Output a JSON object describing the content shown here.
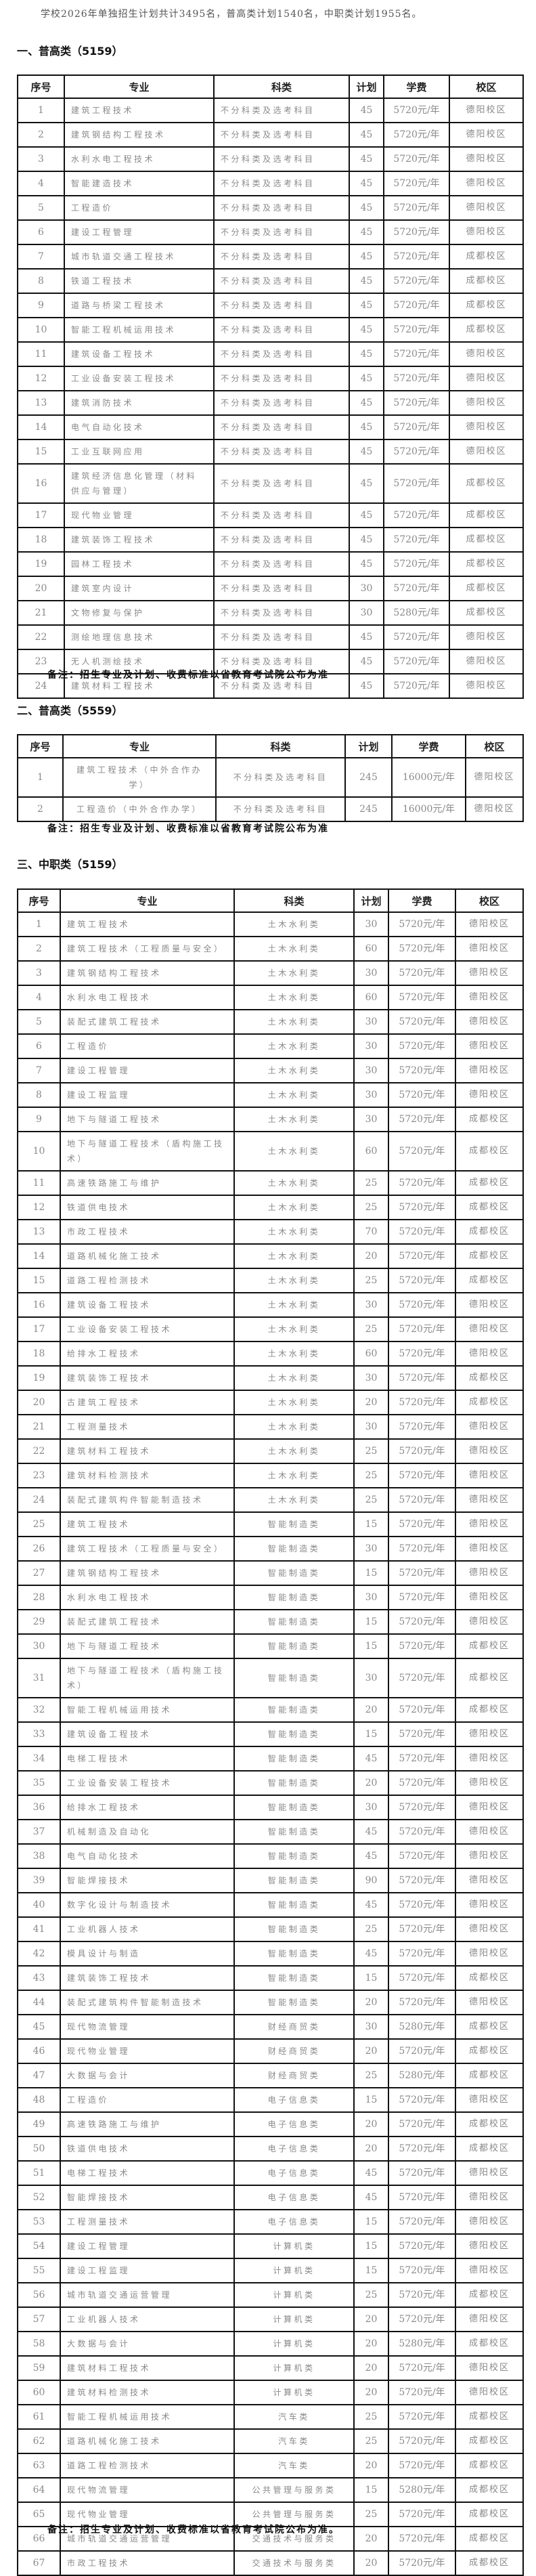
{
  "intro": "学校2026年单独招生计划共计3495名，普高类计划1540名，中职类计划1955名。",
  "columns": [
    "序号",
    "专业",
    "科类",
    "计划",
    "学费",
    "校区"
  ],
  "sections": [
    {
      "heading": "一、普高类（5159）",
      "note": "备注：招生专业及计划、收费标准以省教育考试院公布为准",
      "rows": [
        [
          "1",
          "建筑工程技术",
          "不分科类及选考科目",
          "45",
          "5720元/年",
          "德阳校区"
        ],
        [
          "2",
          "建筑钢结构工程技术",
          "不分科类及选考科目",
          "45",
          "5720元/年",
          "德阳校区"
        ],
        [
          "3",
          "水利水电工程技术",
          "不分科类及选考科目",
          "45",
          "5720元/年",
          "德阳校区"
        ],
        [
          "4",
          "智能建造技术",
          "不分科类及选考科目",
          "45",
          "5720元/年",
          "德阳校区"
        ],
        [
          "5",
          "工程造价",
          "不分科类及选考科目",
          "45",
          "5720元/年",
          "德阳校区"
        ],
        [
          "6",
          "建设工程管理",
          "不分科类及选考科目",
          "45",
          "5720元/年",
          "德阳校区"
        ],
        [
          "7",
          "城市轨道交通工程技术",
          "不分科类及选考科目",
          "45",
          "5720元/年",
          "成都校区"
        ],
        [
          "8",
          "铁道工程技术",
          "不分科类及选考科目",
          "45",
          "5720元/年",
          "成都校区"
        ],
        [
          "9",
          "道路与桥梁工程技术",
          "不分科类及选考科目",
          "45",
          "5720元/年",
          "成都校区"
        ],
        [
          "10",
          "智能工程机械运用技术",
          "不分科类及选考科目",
          "45",
          "5720元/年",
          "成都校区"
        ],
        [
          "11",
          "建筑设备工程技术",
          "不分科类及选考科目",
          "45",
          "5720元/年",
          "德阳校区"
        ],
        [
          "12",
          "工业设备安装工程技术",
          "不分科类及选考科目",
          "45",
          "5720元/年",
          "德阳校区"
        ],
        [
          "13",
          "建筑消防技术",
          "不分科类及选考科目",
          "45",
          "5720元/年",
          "德阳校区"
        ],
        [
          "14",
          "电气自动化技术",
          "不分科类及选考科目",
          "45",
          "5720元/年",
          "德阳校区"
        ],
        [
          "15",
          "工业互联网应用",
          "不分科类及选考科目",
          "45",
          "5720元/年",
          "德阳校区"
        ],
        [
          "16",
          "建筑经济信息化管理（材料供应与管理）",
          "不分科类及选考科目",
          "45",
          "5720元/年",
          "成都校区"
        ],
        [
          "17",
          "现代物业管理",
          "不分科类及选考科目",
          "45",
          "5720元/年",
          "成都校区"
        ],
        [
          "18",
          "建筑装饰工程技术",
          "不分科类及选考科目",
          "45",
          "5720元/年",
          "成都校区"
        ],
        [
          "19",
          "园林工程技术",
          "不分科类及选考科目",
          "45",
          "5720元/年",
          "成都校区"
        ],
        [
          "20",
          "建筑室内设计",
          "不分科类及选考科目",
          "30",
          "5720元/年",
          "成都校区"
        ],
        [
          "21",
          "文物修复与保护",
          "不分科类及选考科目",
          "30",
          "5280元/年",
          "成都校区"
        ],
        [
          "22",
          "测绘地理信息技术",
          "不分科类及选考科目",
          "45",
          "5720元/年",
          "德阳校区"
        ],
        [
          "23",
          "无人机测绘技术",
          "不分科类及选考科目",
          "45",
          "5720元/年",
          "德阳校区"
        ],
        [
          "24",
          "建筑材料工程技术",
          "不分科类及选考科目",
          "45",
          "5720元/年",
          "德阳校区"
        ]
      ]
    },
    {
      "heading": "二、普高类（5559）",
      "note": "备注：招生专业及计划、收费标准以省教育考试院公布为准",
      "rows": [
        [
          "1",
          "建筑工程技术（中外合作办学）",
          "不分科类及选考科目",
          "245",
          "16000元/年",
          "德阳校区"
        ],
        [
          "2",
          "工程造价（中外合作办学）",
          "不分科类及选考科目",
          "245",
          "16000元/年",
          "德阳校区"
        ]
      ]
    },
    {
      "heading": "三、中职类（5159）",
      "note": "备注：招生专业及计划、收费标准以省教育考试院公布为准。",
      "rows": [
        [
          "1",
          "建筑工程技术",
          "土木水利类",
          "30",
          "5720元/年",
          "德阳校区"
        ],
        [
          "2",
          "建筑工程技术（工程质量与安全）",
          "土木水利类",
          "60",
          "5720元/年",
          "德阳校区"
        ],
        [
          "3",
          "建筑钢结构工程技术",
          "土木水利类",
          "30",
          "5720元/年",
          "德阳校区"
        ],
        [
          "4",
          "水利水电工程技术",
          "土木水利类",
          "60",
          "5720元/年",
          "德阳校区"
        ],
        [
          "5",
          "装配式建筑工程技术",
          "土木水利类",
          "30",
          "5720元/年",
          "德阳校区"
        ],
        [
          "6",
          "工程造价",
          "土木水利类",
          "30",
          "5720元/年",
          "德阳校区"
        ],
        [
          "7",
          "建设工程管理",
          "土木水利类",
          "30",
          "5720元/年",
          "德阳校区"
        ],
        [
          "8",
          "建设工程监理",
          "土木水利类",
          "30",
          "5720元/年",
          "德阳校区"
        ],
        [
          "9",
          "地下与隧道工程技术",
          "土木水利类",
          "30",
          "5720元/年",
          "成都校区"
        ],
        [
          "10",
          "地下与隧道工程技术（盾构施工技术）",
          "土木水利类",
          "60",
          "5720元/年",
          "成都校区"
        ],
        [
          "11",
          "高速铁路施工与维护",
          "土木水利类",
          "25",
          "5720元/年",
          "成都校区"
        ],
        [
          "12",
          "铁道供电技术",
          "土木水利类",
          "25",
          "5720元/年",
          "成都校区"
        ],
        [
          "13",
          "市政工程技术",
          "土木水利类",
          "70",
          "5720元/年",
          "成都校区"
        ],
        [
          "14",
          "道路机械化施工技术",
          "土木水利类",
          "20",
          "5720元/年",
          "成都校区"
        ],
        [
          "15",
          "道路工程检测技术",
          "土木水利类",
          "25",
          "5720元/年",
          "成都校区"
        ],
        [
          "16",
          "建筑设备工程技术",
          "土木水利类",
          "30",
          "5720元/年",
          "德阳校区"
        ],
        [
          "17",
          "工业设备安装工程技术",
          "土木水利类",
          "25",
          "5720元/年",
          "德阳校区"
        ],
        [
          "18",
          "给排水工程技术",
          "土木水利类",
          "60",
          "5720元/年",
          "德阳校区"
        ],
        [
          "19",
          "建筑装饰工程技术",
          "土木水利类",
          "30",
          "5720元/年",
          "成都校区"
        ],
        [
          "20",
          "古建筑工程技术",
          "土木水利类",
          "20",
          "5720元/年",
          "成都校区"
        ],
        [
          "21",
          "工程测量技术",
          "土木水利类",
          "30",
          "5720元/年",
          "德阳校区"
        ],
        [
          "22",
          "建筑材料工程技术",
          "土木水利类",
          "25",
          "5720元/年",
          "德阳校区"
        ],
        [
          "23",
          "建筑材料检测技术",
          "土木水利类",
          "25",
          "5720元/年",
          "德阳校区"
        ],
        [
          "24",
          "装配式建筑构件智能制造技术",
          "土木水利类",
          "25",
          "5720元/年",
          "德阳校区"
        ],
        [
          "25",
          "建筑工程技术",
          "智能制造类",
          "15",
          "5720元/年",
          "德阳校区"
        ],
        [
          "26",
          "建筑工程技术（工程质量与安全）",
          "智能制造类",
          "30",
          "5720元/年",
          "德阳校区"
        ],
        [
          "27",
          "建筑钢结构工程技术",
          "智能制造类",
          "15",
          "5720元/年",
          "德阳校区"
        ],
        [
          "28",
          "水利水电工程技术",
          "智能制造类",
          "30",
          "5720元/年",
          "德阳校区"
        ],
        [
          "29",
          "装配式建筑工程技术",
          "智能制造类",
          "15",
          "5720元/年",
          "德阳校区"
        ],
        [
          "30",
          "地下与隧道工程技术",
          "智能制造类",
          "15",
          "5720元/年",
          "成都校区"
        ],
        [
          "31",
          "地下与隧道工程技术（盾构施工技术）",
          "智能制造类",
          "30",
          "5720元/年",
          "成都校区"
        ],
        [
          "32",
          "智能工程机械运用技术",
          "智能制造类",
          "20",
          "5720元/年",
          "成都校区"
        ],
        [
          "33",
          "建筑设备工程技术",
          "智能制造类",
          "15",
          "5720元/年",
          "德阳校区"
        ],
        [
          "34",
          "电梯工程技术",
          "智能制造类",
          "45",
          "5720元/年",
          "德阳校区"
        ],
        [
          "35",
          "工业设备安装工程技术",
          "智能制造类",
          "20",
          "5720元/年",
          "德阳校区"
        ],
        [
          "36",
          "给排水工程技术",
          "智能制造类",
          "30",
          "5720元/年",
          "德阳校区"
        ],
        [
          "37",
          "机械制造及自动化",
          "智能制造类",
          "45",
          "5720元/年",
          "德阳校区"
        ],
        [
          "38",
          "电气自动化技术",
          "智能制造类",
          "45",
          "5720元/年",
          "德阳校区"
        ],
        [
          "39",
          "智能焊接技术",
          "智能制造类",
          "90",
          "5720元/年",
          "德阳校区"
        ],
        [
          "40",
          "数字化设计与制造技术",
          "智能制造类",
          "45",
          "5720元/年",
          "德阳校区"
        ],
        [
          "41",
          "工业机器人技术",
          "智能制造类",
          "25",
          "5720元/年",
          "德阳校区"
        ],
        [
          "42",
          "模具设计与制造",
          "智能制造类",
          "45",
          "5720元/年",
          "德阳校区"
        ],
        [
          "43",
          "建筑装饰工程技术",
          "智能制造类",
          "15",
          "5720元/年",
          "成都校区"
        ],
        [
          "44",
          "装配式建筑构件智能制造技术",
          "智能制造类",
          "20",
          "5720元/年",
          "德阳校区"
        ],
        [
          "45",
          "现代物流管理",
          "财经商贸类",
          "30",
          "5280元/年",
          "成都校区"
        ],
        [
          "46",
          "现代物业管理",
          "财经商贸类",
          "20",
          "5720元/年",
          "成都校区"
        ],
        [
          "47",
          "大数据与会计",
          "财经商贸类",
          "25",
          "5280元/年",
          "成都校区"
        ],
        [
          "48",
          "工程造价",
          "电子信息类",
          "15",
          "5720元/年",
          "德阳校区"
        ],
        [
          "49",
          "高速铁路施工与维护",
          "电子信息类",
          "20",
          "5720元/年",
          "成都校区"
        ],
        [
          "50",
          "铁道供电技术",
          "电子信息类",
          "20",
          "5720元/年",
          "成都校区"
        ],
        [
          "51",
          "电梯工程技术",
          "电子信息类",
          "45",
          "5720元/年",
          "德阳校区"
        ],
        [
          "52",
          "智能焊接技术",
          "电子信息类",
          "45",
          "5720元/年",
          "德阳校区"
        ],
        [
          "53",
          "工程测量技术",
          "电子信息类",
          "15",
          "5720元/年",
          "德阳校区"
        ],
        [
          "54",
          "建设工程管理",
          "计算机类",
          "15",
          "5720元/年",
          "德阳校区"
        ],
        [
          "55",
          "建设工程监理",
          "计算机类",
          "15",
          "5720元/年",
          "德阳校区"
        ],
        [
          "56",
          "城市轨道交通运营管理",
          "计算机类",
          "25",
          "5720元/年",
          "成都校区"
        ],
        [
          "57",
          "工业机器人技术",
          "计算机类",
          "20",
          "5720元/年",
          "德阳校区"
        ],
        [
          "58",
          "大数据与会计",
          "计算机类",
          "20",
          "5280元/年",
          "成都校区"
        ],
        [
          "59",
          "建筑材料工程技术",
          "计算机类",
          "20",
          "5720元/年",
          "德阳校区"
        ],
        [
          "60",
          "建筑材料检测技术",
          "计算机类",
          "20",
          "5720元/年",
          "德阳校区"
        ],
        [
          "61",
          "智能工程机械运用技术",
          "汽车类",
          "25",
          "5720元/年",
          "成都校区"
        ],
        [
          "62",
          "道路机械化施工技术",
          "汽车类",
          "25",
          "5720元/年",
          "成都校区"
        ],
        [
          "63",
          "道路工程检测技术",
          "汽车类",
          "20",
          "5720元/年",
          "成都校区"
        ],
        [
          "64",
          "现代物流管理",
          "公共管理与服务类",
          "15",
          "5280元/年",
          "成都校区"
        ],
        [
          "65",
          "现代物业管理",
          "公共管理与服务类",
          "25",
          "5720元/年",
          "成都校区"
        ],
        [
          "66",
          "城市轨道交通运营管理",
          "交通技术与服务类",
          "20",
          "5720元/年",
          "成都校区"
        ],
        [
          "67",
          "市政工程技术",
          "交通技术与服务类",
          "20",
          "5720元/年",
          "成都校区"
        ]
      ]
    }
  ]
}
